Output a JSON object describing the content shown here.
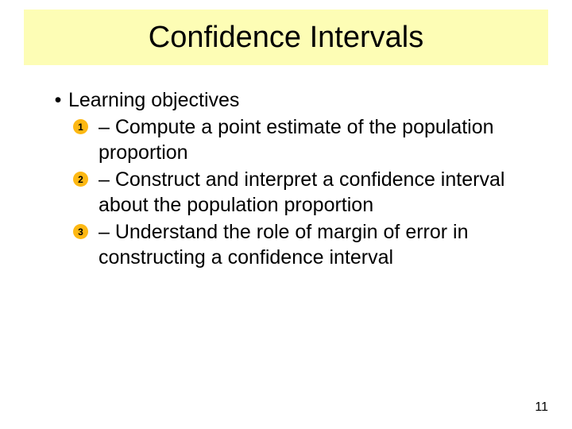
{
  "colors": {
    "title_band_bg": "#fdfdb5",
    "badge_bg": "#fdb813",
    "text": "#000000",
    "page_bg": "#ffffff"
  },
  "title": "Confidence Intervals",
  "heading": "Learning objectives",
  "objectives": [
    {
      "num": "1",
      "text": "– Compute a point estimate of the population proportion"
    },
    {
      "num": "2",
      "text": "– Construct and interpret a confidence interval about the population proportion"
    },
    {
      "num": "3",
      "text": "– Understand the role of margin of error in constructing a confidence interval"
    }
  ],
  "page_number": "11",
  "typography": {
    "title_fontsize": 38,
    "body_fontsize": 25,
    "badge_fontsize": 12,
    "pagenum_fontsize": 16,
    "font_family": "Arial"
  }
}
